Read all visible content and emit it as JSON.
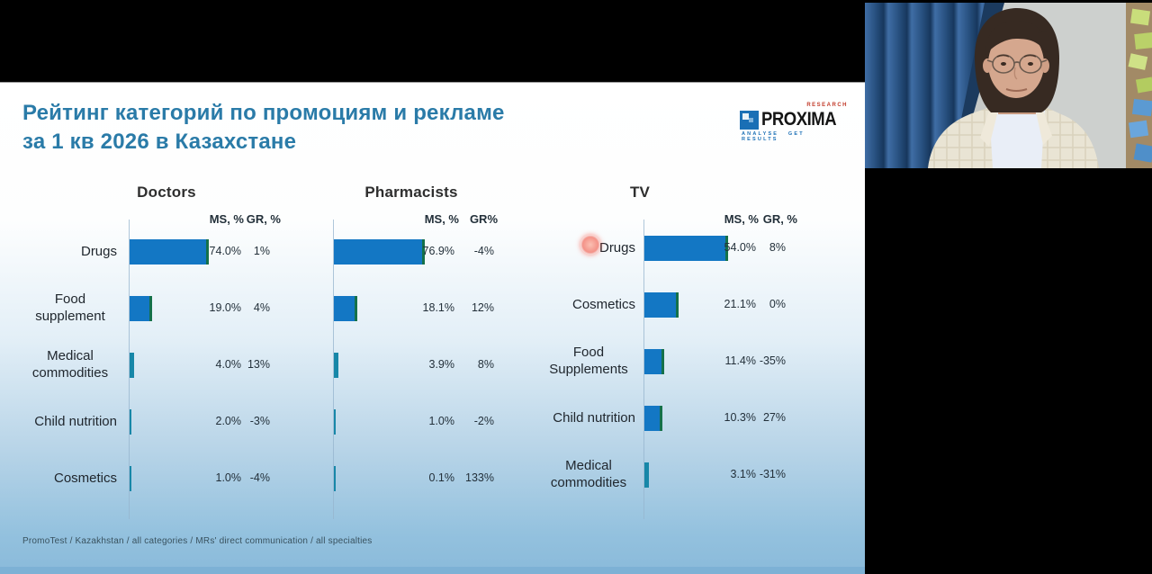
{
  "slide": {
    "title_line1": "Рейтинг категорий по промоциям и рекламе",
    "title_line2": "за 1 кв 2026 в Казахстане",
    "footer": "PromoTest / Kazakhstan / all categories / MRs' direct communication / all specialties",
    "colors": {
      "title": "#2a7ba8",
      "bar_blue": "#1377c4",
      "bar_green_edge": "#15714a",
      "slide_bottom_blue": "#8abada"
    }
  },
  "logo": {
    "brand": "PROXIMA",
    "tagline_top": "RESEARCH",
    "tagline_bottom": "ANALYSE GET RESULTS",
    "icon": "blue-mosaic-square-icon"
  },
  "chart_data": [
    {
      "type": "bar",
      "title": "Doctors",
      "ms_header": "MS, %",
      "gr_header": "GR, %",
      "categories": [
        "Drugs",
        "Food supplement",
        "Medical commodities",
        "Child nutrition",
        "Cosmetics"
      ],
      "series": [
        {
          "name": "MS, %",
          "values": [
            74.0,
            19.0,
            4.0,
            2.0,
            1.0
          ]
        },
        {
          "name": "GR, %",
          "values": [
            1,
            4,
            13,
            -3,
            -4
          ]
        }
      ],
      "ms_labels": [
        "74.0%",
        "19.0%",
        "4.0%",
        "2.0%",
        "1.0%"
      ],
      "gr_labels": [
        "1%",
        "4%",
        "13%",
        "-3%",
        "-4%"
      ],
      "show_labels": true,
      "xlim": [
        0,
        100
      ],
      "orientation": "horizontal"
    },
    {
      "type": "bar",
      "title": "Pharmacists",
      "ms_header": "MS, %",
      "gr_header": "GR%",
      "categories": [
        "Drugs",
        "Food supplement",
        "Medical commodities",
        "Child nutrition",
        "Cosmetics"
      ],
      "series": [
        {
          "name": "MS, %",
          "values": [
            76.9,
            18.1,
            3.9,
            1.0,
            0.1
          ]
        },
        {
          "name": "GR%",
          "values": [
            -4,
            12,
            8,
            -2,
            133
          ]
        }
      ],
      "ms_labels": [
        "76.9%",
        "18.1%",
        "3.9%",
        "1.0%",
        "0.1%"
      ],
      "gr_labels": [
        "-4%",
        "12%",
        "8%",
        "-2%",
        "133%"
      ],
      "show_labels": false,
      "xlim": [
        0,
        100
      ],
      "orientation": "horizontal"
    },
    {
      "type": "bar",
      "title": "TV",
      "ms_header": "MS, %",
      "gr_header": "GR, %",
      "categories": [
        "Drugs",
        "Cosmetics",
        "Food Supplements",
        "Child nutrition",
        "Medical commodities"
      ],
      "series": [
        {
          "name": "MS, %",
          "values": [
            54.0,
            21.1,
            11.4,
            10.3,
            3.1
          ]
        },
        {
          "name": "GR, %",
          "values": [
            8,
            0,
            -35,
            27,
            -31
          ]
        }
      ],
      "ms_labels": [
        "54.0%",
        "21.1%",
        "11.4%",
        "10.3%",
        "3.1%"
      ],
      "gr_labels": [
        "8%",
        "0%",
        "-35%",
        "27%",
        "-31%"
      ],
      "show_labels": true,
      "xlim": [
        0,
        100
      ],
      "orientation": "horizontal"
    }
  ],
  "annotations": {
    "laser_pointer": "red laser dot on TV 'Drugs' label"
  },
  "webcam": {
    "description": "presenter video tile: woman with short dark hair and glasses, cream checkered jacket, blue curtain left, sticky notes board right"
  }
}
